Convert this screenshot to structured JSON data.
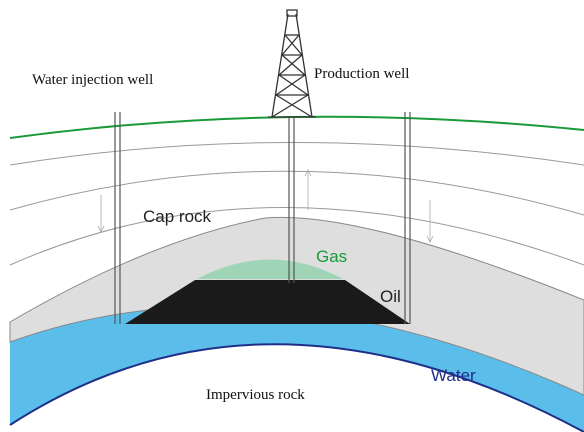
{
  "labels": {
    "water_injection_well": "Water injection well",
    "production_well": "Production well",
    "cap_rock": "Cap rock",
    "gas": "Gas",
    "oil": "Oil",
    "water": "Water",
    "impervious_rock": "Impervious rock"
  }
}
